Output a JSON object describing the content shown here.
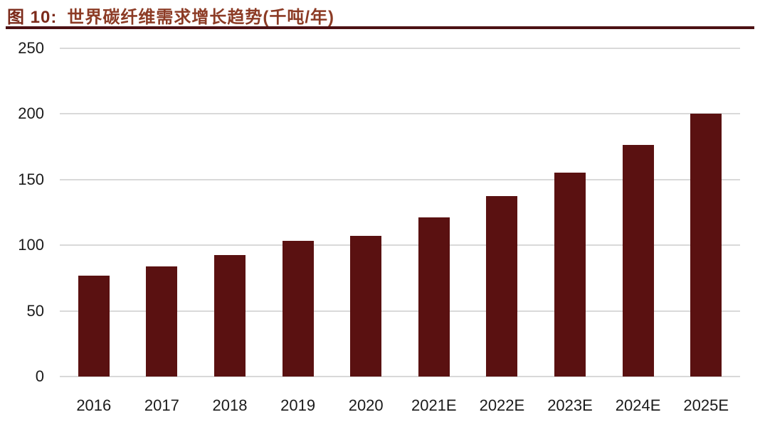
{
  "header": {
    "figure_label": "图 10:",
    "title": "世界碳纤维需求增长趋势(千吨/年)"
  },
  "chart_data": {
    "type": "bar",
    "title": "世界碳纤维需求增长趋势",
    "unit_label": "千吨/年",
    "categories": [
      "2016",
      "2017",
      "2018",
      "2019",
      "2020",
      "2021E",
      "2022E",
      "2023E",
      "2024E",
      "2025E"
    ],
    "values": [
      77,
      84,
      92.5,
      103.5,
      107,
      121,
      137.5,
      155.5,
      176.5,
      200
    ],
    "xlabel": "",
    "ylabel": "",
    "ylim": [
      0,
      250
    ],
    "yticks": [
      0,
      50,
      100,
      150,
      200,
      250
    ],
    "grid": true,
    "legend": "none",
    "bar_color": "#5a1111"
  },
  "colors": {
    "title_accent": "#8c3b25",
    "figure_label_accent": "#7c2a1a",
    "divider": "#4c1114",
    "gridline": "#d9d9d9",
    "axis_text": "#1a1a1a",
    "background": "#ffffff"
  }
}
